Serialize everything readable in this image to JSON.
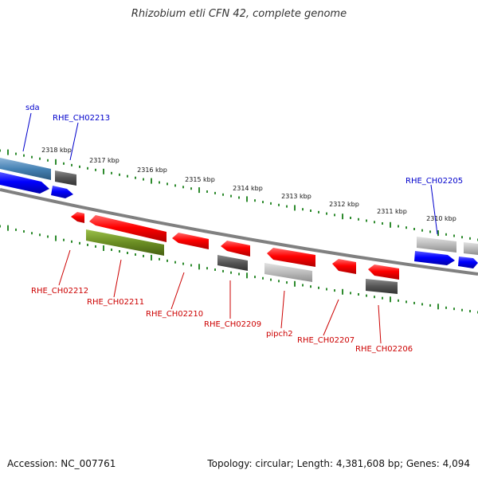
{
  "title": "Rhizobium etli CFN 42, complete genome",
  "footer": {
    "accession": "Accession: NC_007761",
    "stats": "Topology: circular; Length: 4,381,608 bp; Genes: 4,094"
  },
  "colors": {
    "ticks": "#2e8b2e",
    "top_label": "#0000cc",
    "bottom_label": "#cc0000",
    "backbone": "#808080",
    "steelblue": "#4682b4",
    "blue": "#0000ff",
    "red": "#ff0000",
    "green": "#6b8e23",
    "dark_gray": "#555555",
    "light_gray": "#bbbbbb"
  },
  "kbp_labels": [
    "2318 kbp",
    "2317 kbp",
    "2316 kbp",
    "2315 kbp",
    "2314 kbp",
    "2313 kbp",
    "2312 kbp",
    "2311 kbp",
    "2310 kbp"
  ],
  "top_labels": [
    "sda",
    "RHE_CH02213",
    "RHE_CH02205"
  ],
  "bottom_labels": [
    "RHE_CH02212",
    "RHE_CH02211",
    "RHE_CH02210",
    "RHE_CH02209",
    "pipch2",
    "RHE_CH02207",
    "RHE_CH02206"
  ]
}
